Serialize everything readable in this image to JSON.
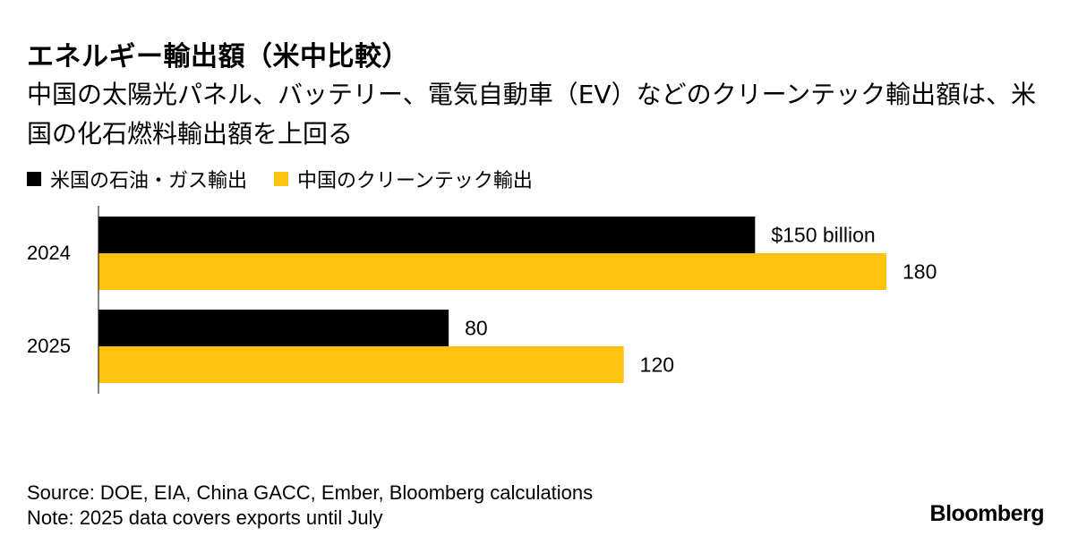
{
  "header": {
    "title": "エネルギー輸出額（米中比較）",
    "subtitle": "中国の太陽光パネル、バッテリー、電気自動車（EV）などのクリーンテック輸出額は、米国の化石燃料輸出額を上回る"
  },
  "chart_data": {
    "type": "bar",
    "orientation": "horizontal",
    "categories": [
      "2024",
      "2025"
    ],
    "series": [
      {
        "name": "米国の石油・ガス輸出",
        "color": "#000000",
        "values": [
          150,
          80
        ],
        "labels": [
          "$150 billion",
          "80"
        ]
      },
      {
        "name": "中国のクリーンテック輸出",
        "color": "#FFC20E",
        "values": [
          180,
          120
        ],
        "labels": [
          "180",
          "120"
        ]
      }
    ],
    "xlim": [
      0,
      180
    ],
    "grid": false,
    "legend_position": "top-left"
  },
  "footer": {
    "source": "Source: DOE, EIA, China GACC, Ember, Bloomberg calculations",
    "note": "Note: 2025 data covers exports until July",
    "brand": "Bloomberg"
  }
}
